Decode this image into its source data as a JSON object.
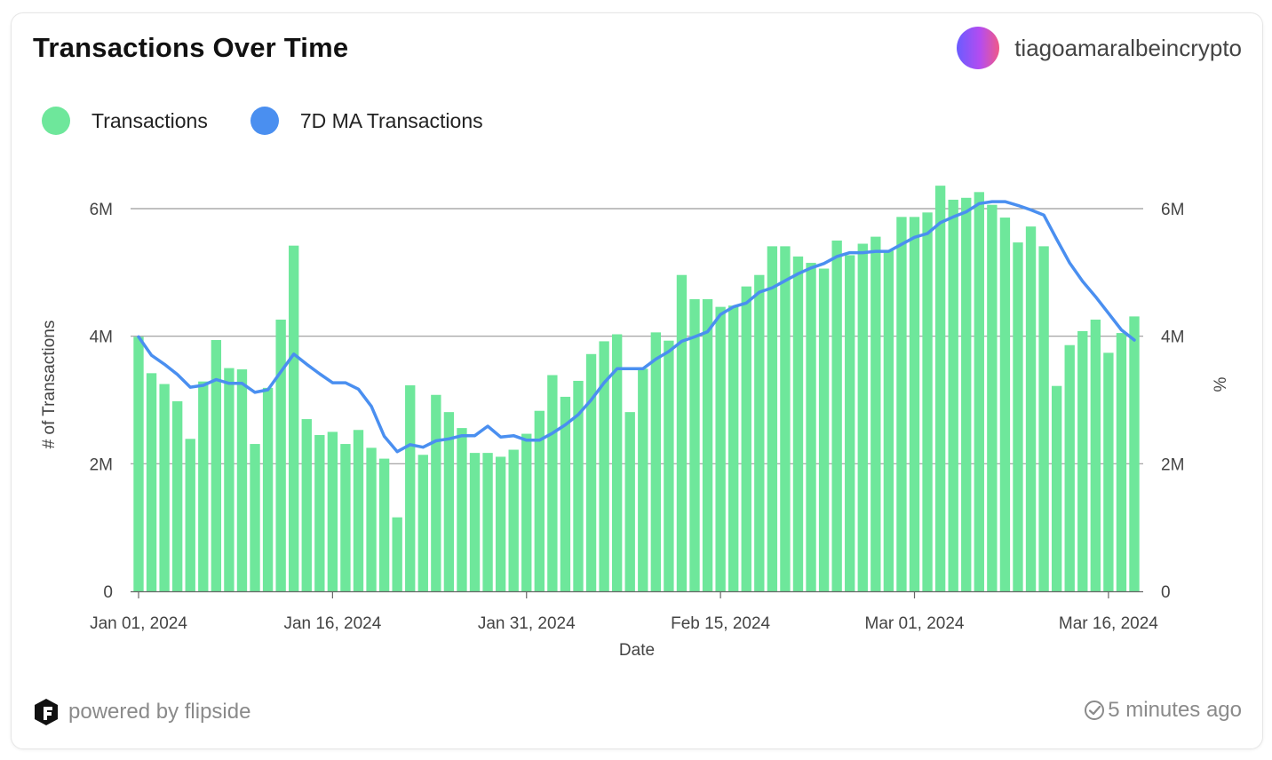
{
  "header": {
    "title": "Transactions Over Time",
    "author": "tiagoamaralbeincrypto"
  },
  "footer": {
    "powered_by": "powered by flipside",
    "updated": "5 minutes ago"
  },
  "colors": {
    "bar": "#6ee79b",
    "line": "#4a8ff0",
    "grid": "#9a9a9a"
  },
  "chart_data": {
    "type": "bar",
    "xlabel": "Date",
    "ylabel": "# of Transactions",
    "y2label": "%",
    "ylim": [
      0,
      6000000
    ],
    "yticks": [
      0,
      2000000,
      4000000,
      6000000
    ],
    "ytick_labels": [
      "0",
      "2M",
      "4M",
      "6M"
    ],
    "y2tick_labels": [
      "0",
      "2M",
      "4M",
      "6M"
    ],
    "x_start": "2024-01-01",
    "x_tick_labels": [
      "Jan 01, 2024",
      "Jan 16, 2024",
      "Jan 31, 2024",
      "Feb 15, 2024",
      "Mar 01, 2024",
      "Mar 16, 2024"
    ],
    "legend": [
      "Transactions",
      "7D MA Transactions"
    ],
    "legend_position": "top-left",
    "grid": true,
    "series": [
      {
        "name": "Transactions",
        "type": "bar",
        "values": [
          3990000,
          3420000,
          3250000,
          2980000,
          2390000,
          3290000,
          3940000,
          3500000,
          3480000,
          2310000,
          3190000,
          4260000,
          5420000,
          2700000,
          2450000,
          2500000,
          2310000,
          2530000,
          2250000,
          2080000,
          1160000,
          3230000,
          2140000,
          3080000,
          2810000,
          2560000,
          2170000,
          2170000,
          2110000,
          2220000,
          2470000,
          2830000,
          3390000,
          3050000,
          3300000,
          3720000,
          3920000,
          4030000,
          2810000,
          3490000,
          4060000,
          3930000,
          4960000,
          4580000,
          4580000,
          4460000,
          4480000,
          4780000,
          4960000,
          5410000,
          5410000,
          5250000,
          5150000,
          5060000,
          5500000,
          5270000,
          5450000,
          5560000,
          5340000,
          5870000,
          5870000,
          5940000,
          6360000,
          6140000,
          6170000,
          6260000,
          6060000,
          5860000,
          5470000,
          5720000,
          5410000,
          3220000,
          3860000,
          4080000,
          4260000,
          3740000,
          4050000,
          4310000
        ]
      },
      {
        "name": "7D MA Transactions",
        "type": "line",
        "values": [
          3990000,
          3700000,
          3560000,
          3400000,
          3200000,
          3230000,
          3320000,
          3260000,
          3260000,
          3120000,
          3160000,
          3440000,
          3720000,
          3560000,
          3410000,
          3270000,
          3270000,
          3170000,
          2900000,
          2430000,
          2190000,
          2300000,
          2260000,
          2360000,
          2390000,
          2440000,
          2440000,
          2590000,
          2420000,
          2440000,
          2370000,
          2370000,
          2480000,
          2610000,
          2770000,
          3000000,
          3270000,
          3490000,
          3490000,
          3490000,
          3640000,
          3760000,
          3920000,
          3990000,
          4070000,
          4340000,
          4460000,
          4520000,
          4690000,
          4760000,
          4870000,
          4980000,
          5070000,
          5140000,
          5250000,
          5310000,
          5310000,
          5330000,
          5330000,
          5440000,
          5550000,
          5610000,
          5780000,
          5870000,
          5950000,
          6080000,
          6110000,
          6110000,
          6050000,
          5980000,
          5900000,
          5520000,
          5150000,
          4860000,
          4620000,
          4360000,
          4100000,
          3940000
        ]
      }
    ]
  }
}
